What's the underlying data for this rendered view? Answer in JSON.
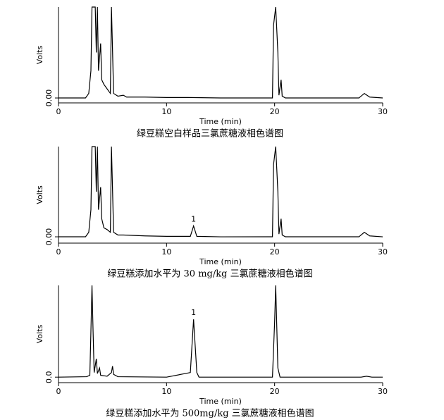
{
  "chart_data": [
    {
      "type": "line",
      "title": "绿豆糕空白样品三氯蔗糖液相色谱图",
      "x_label": "Time (min)",
      "y_label": "Volts",
      "xlim": [
        0,
        30
      ],
      "xticks": [
        0,
        10,
        20,
        30
      ],
      "ylim": [
        -0.054,
        1
      ],
      "yticks": [
        {
          "value": 0,
          "label": "0.00"
        }
      ],
      "color": "#000000",
      "x": [
        0,
        2.5,
        2.8,
        3.0,
        3.1,
        3.4,
        3.5,
        3.6,
        3.7,
        3.9,
        4.0,
        4.2,
        4.5,
        4.8,
        4.9,
        5.1,
        5.5,
        6.0,
        6.3,
        8,
        10,
        12,
        15,
        19.8,
        19.9,
        20.1,
        20.3,
        20.4,
        20.6,
        20.7,
        21,
        27.8,
        28.3,
        28.8,
        30
      ],
      "values": [
        0,
        0,
        0.05,
        0.3,
        1,
        1,
        0.5,
        1,
        0.3,
        0.6,
        0.2,
        0.15,
        0.1,
        0.05,
        1,
        0.05,
        0.02,
        0.03,
        0.01,
        0.01,
        0.005,
        0.005,
        0,
        0,
        0.8,
        1,
        0.5,
        0.03,
        0.2,
        0.02,
        0,
        0,
        0.05,
        0.01,
        0
      ]
    },
    {
      "type": "line",
      "title": "绿豆糕添加水平为 30 mg/kg 三氯蔗糖液相色谱图",
      "x_label": "Time (min)",
      "y_label": "Volts",
      "xlim": [
        0,
        30
      ],
      "xticks": [
        0,
        10,
        20,
        30
      ],
      "ylim": [
        -0.07,
        1
      ],
      "yticks": [
        {
          "value": 0,
          "label": "0.00"
        }
      ],
      "color": "#000000",
      "x": [
        0,
        2.5,
        2.8,
        3.0,
        3.1,
        3.4,
        3.5,
        3.6,
        3.7,
        3.9,
        4.0,
        4.2,
        4.5,
        4.8,
        4.9,
        5.1,
        5.5,
        6.0,
        8,
        10,
        12.2,
        12.5,
        12.8,
        15,
        19.8,
        19.9,
        20.1,
        20.3,
        20.4,
        20.6,
        20.7,
        21,
        27.8,
        28.3,
        28.8,
        30
      ],
      "values": [
        0,
        0,
        0.05,
        0.3,
        1,
        1,
        0.5,
        1,
        0.3,
        0.55,
        0.2,
        0.1,
        0.08,
        0.05,
        1,
        0.05,
        0.02,
        0.02,
        0.01,
        0.005,
        0.005,
        0.12,
        0.005,
        0,
        0,
        0.8,
        1,
        0.5,
        0.03,
        0.2,
        0.02,
        0,
        0,
        0.05,
        0.01,
        0
      ],
      "annotations": [
        {
          "text": "1",
          "x": 12.5,
          "y": 0.12
        }
      ]
    },
    {
      "type": "line",
      "title": "绿豆糕添加水平为 500mg/kg 三氯蔗糖液相色谱图",
      "x_label": "Time (min)",
      "y_label": "Volts",
      "xlim": [
        0,
        30
      ],
      "xticks": [
        0,
        10,
        20,
        30
      ],
      "ylim": [
        -0.06,
        1
      ],
      "yticks": [
        {
          "value": 0,
          "label": "0.0"
        }
      ],
      "color": "#000000",
      "x": [
        0,
        2.6,
        2.9,
        3.0,
        3.1,
        3.2,
        3.3,
        3.5,
        3.6,
        3.8,
        3.9,
        4.5,
        4.9,
        5.0,
        5.1,
        5.5,
        10,
        12.2,
        12.5,
        12.8,
        13,
        19.8,
        20.0,
        20.1,
        20.3,
        20.5,
        28,
        28.5,
        29,
        30
      ],
      "values": [
        0,
        0.005,
        0.02,
        0.5,
        1,
        0.5,
        0.05,
        0.2,
        0.04,
        0.1,
        0.02,
        0.01,
        0.05,
        0.12,
        0.03,
        0.005,
        0,
        0.05,
        0.63,
        0.05,
        0,
        0,
        0.6,
        1,
        0.1,
        0,
        0,
        0.01,
        0,
        0
      ],
      "annotations": [
        {
          "text": "1",
          "x": 12.5,
          "y": 0.63
        }
      ]
    }
  ]
}
